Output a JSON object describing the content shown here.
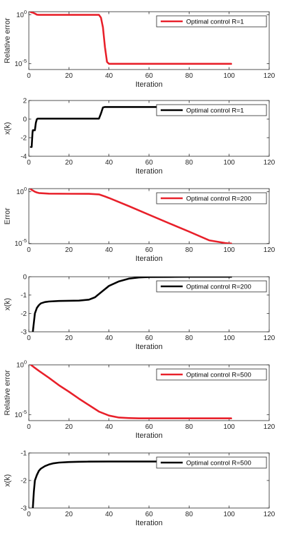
{
  "chart_data": [
    {
      "type": "line",
      "ylabel": "Relative error",
      "xlabel": "Iteration",
      "xlim": [
        0,
        120
      ],
      "yscale": "log",
      "ylim": [
        2.5e-06,
        2
      ],
      "xticks": [
        "0",
        "20",
        "40",
        "60",
        "80",
        "100",
        "120"
      ],
      "yticks": [
        {
          "value": 1,
          "base": "10",
          "exp": "0"
        },
        {
          "value": 1e-05,
          "base": "10",
          "exp": "-5"
        }
      ],
      "legend": {
        "text": "Optimal control R=1",
        "placement": "top-right"
      },
      "series": [
        {
          "name": "Optimal control R=1",
          "color": "#e8202a",
          "x": [
            1,
            2,
            3,
            4,
            5,
            10,
            20,
            30,
            35,
            36,
            37,
            38,
            39,
            40,
            50,
            60,
            70,
            80,
            90,
            100,
            101
          ],
          "y": [
            1.8,
            1.6,
            1.3,
            1.0,
            0.95,
            0.95,
            0.95,
            0.95,
            0.95,
            0.5,
            0.05,
            0.0005,
            1.5e-05,
            9.5e-06,
            9.5e-06,
            9.5e-06,
            9.5e-06,
            9.5e-06,
            9.5e-06,
            9.5e-06,
            9.5e-06
          ]
        }
      ]
    },
    {
      "type": "line",
      "ylabel": "x(k)",
      "xlabel": "Iteration",
      "xlim": [
        0,
        120
      ],
      "yscale": "linear",
      "ylim": [
        -4,
        2
      ],
      "xticks": [
        "0",
        "20",
        "40",
        "60",
        "80",
        "100",
        "120"
      ],
      "yticks": [
        {
          "value": 2,
          "label": "2"
        },
        {
          "value": 0,
          "label": "0"
        },
        {
          "value": -2,
          "label": "-2"
        },
        {
          "value": -4,
          "label": "-4"
        }
      ],
      "legend": {
        "text": "Optimal control R=1",
        "placement": "top-right"
      },
      "series": [
        {
          "name": "Optimal control R=1",
          "color": "#000000",
          "x": [
            1,
            1.4,
            1.8,
            2,
            2.5,
            3,
            3.5,
            4,
            4.5,
            5,
            6,
            10,
            20,
            30,
            35,
            36,
            37,
            38,
            40,
            50,
            60,
            70,
            80,
            90,
            100,
            101
          ],
          "y": [
            -3.0,
            -3.0,
            -1.5,
            -1.2,
            -1.2,
            -1.2,
            -0.4,
            0.0,
            0.05,
            0.05,
            0.05,
            0.05,
            0.05,
            0.05,
            0.05,
            0.6,
            1.25,
            1.3,
            1.3,
            1.3,
            1.3,
            1.3,
            1.3,
            1.3,
            1.3,
            1.3
          ]
        }
      ]
    },
    {
      "type": "line",
      "ylabel": "Error",
      "xlabel": "Iteration",
      "xlim": [
        0,
        120
      ],
      "yscale": "log",
      "ylim": [
        9.5e-06,
        2
      ],
      "xticks": [
        "0",
        "20",
        "40",
        "60",
        "80",
        "100",
        "120"
      ],
      "yticks": [
        {
          "value": 1,
          "base": "10",
          "exp": "0"
        },
        {
          "value": 1e-05,
          "base": "10",
          "exp": "-5"
        }
      ],
      "legend": {
        "text": "Optimal control R=200",
        "placement": "top-right"
      },
      "series": [
        {
          "name": "Optimal control R=200",
          "color": "#e8202a",
          "x": [
            1,
            2,
            3,
            4,
            5,
            10,
            20,
            30,
            35,
            38,
            40,
            50,
            60,
            70,
            80,
            90,
            98,
            100,
            101
          ],
          "y": [
            1.7,
            1.3,
            1.0,
            0.85,
            0.75,
            0.65,
            0.63,
            0.62,
            0.55,
            0.35,
            0.25,
            0.04,
            0.006,
            0.0009,
            0.00014,
            2e-05,
            1.1e-05,
            1e-05,
            1e-05
          ]
        }
      ]
    },
    {
      "type": "line",
      "ylabel": "x(k)",
      "xlabel": "Iteration",
      "xlim": [
        0,
        120
      ],
      "yscale": "linear",
      "ylim": [
        -3,
        0
      ],
      "xticks": [
        "0",
        "20",
        "40",
        "60",
        "80",
        "100",
        "120"
      ],
      "yticks": [
        {
          "value": 0,
          "label": "0"
        },
        {
          "value": -1,
          "label": "-1"
        },
        {
          "value": -2,
          "label": "-2"
        },
        {
          "value": -3,
          "label": "-3"
        }
      ],
      "legend": {
        "text": "Optimal control R=200",
        "placement": "top-right"
      },
      "series": [
        {
          "name": "Optimal control R=200",
          "color": "#000000",
          "x": [
            2,
            2.5,
            3,
            4,
            5,
            6,
            8,
            10,
            15,
            20,
            25,
            30,
            33,
            36,
            40,
            45,
            50,
            55,
            60,
            70,
            80,
            90,
            100,
            101
          ],
          "y": [
            -3.0,
            -2.5,
            -2.0,
            -1.7,
            -1.55,
            -1.45,
            -1.38,
            -1.35,
            -1.32,
            -1.31,
            -1.3,
            -1.25,
            -1.12,
            -0.85,
            -0.5,
            -0.25,
            -0.1,
            -0.04,
            -0.02,
            -0.01,
            -0.005,
            -0.003,
            -0.002,
            -0.002
          ]
        }
      ]
    },
    {
      "type": "line",
      "ylabel": "Relative error",
      "xlabel": "Iteration",
      "xlim": [
        0,
        120
      ],
      "yscale": "log",
      "ylim": [
        2.5e-06,
        1
      ],
      "xticks": [
        "0",
        "20",
        "40",
        "60",
        "80",
        "100",
        "120"
      ],
      "yticks": [
        {
          "value": 1,
          "base": "10",
          "exp": "0"
        },
        {
          "value": 1e-05,
          "base": "10",
          "exp": "-5"
        }
      ],
      "legend": {
        "text": "Optimal control R=500",
        "placement": "top-right"
      },
      "series": [
        {
          "name": "Optimal control R=500",
          "color": "#e8202a",
          "x": [
            1,
            3,
            5,
            10,
            15,
            20,
            25,
            30,
            35,
            40,
            45,
            50,
            55,
            60,
            70,
            80,
            90,
            100,
            101
          ],
          "y": [
            1.0,
            0.5,
            0.25,
            0.05,
            0.009,
            0.002,
            0.0004,
            9e-05,
            2e-05,
            8e-06,
            5e-06,
            4.5e-06,
            4.2e-06,
            4.2e-06,
            4.2e-06,
            4.2e-06,
            4.2e-06,
            4.2e-06,
            4.2e-06
          ]
        }
      ]
    },
    {
      "type": "line",
      "ylabel": "x(k)",
      "xlabel": "Iteration",
      "xlim": [
        0,
        120
      ],
      "yscale": "linear",
      "ylim": [
        -3,
        -1
      ],
      "xticks": [
        "0",
        "20",
        "40",
        "60",
        "80",
        "100",
        "120"
      ],
      "yticks": [
        {
          "value": -1,
          "label": "-1"
        },
        {
          "value": -2,
          "label": "-2"
        },
        {
          "value": -3,
          "label": "-3"
        }
      ],
      "legend": {
        "text": "Optimal control R=500",
        "placement": "top-right"
      },
      "series": [
        {
          "name": "Optimal control R=500",
          "color": "#000000",
          "x": [
            2,
            2.5,
            3,
            4,
            5,
            6,
            8,
            10,
            12,
            15,
            20,
            25,
            30,
            40,
            50,
            60,
            70,
            80,
            90,
            100,
            101
          ],
          "y": [
            -3.0,
            -2.4,
            -2.0,
            -1.8,
            -1.65,
            -1.57,
            -1.48,
            -1.42,
            -1.38,
            -1.35,
            -1.33,
            -1.32,
            -1.315,
            -1.31,
            -1.31,
            -1.31,
            -1.31,
            -1.31,
            -1.31,
            -1.31,
            -1.31
          ]
        }
      ]
    }
  ]
}
